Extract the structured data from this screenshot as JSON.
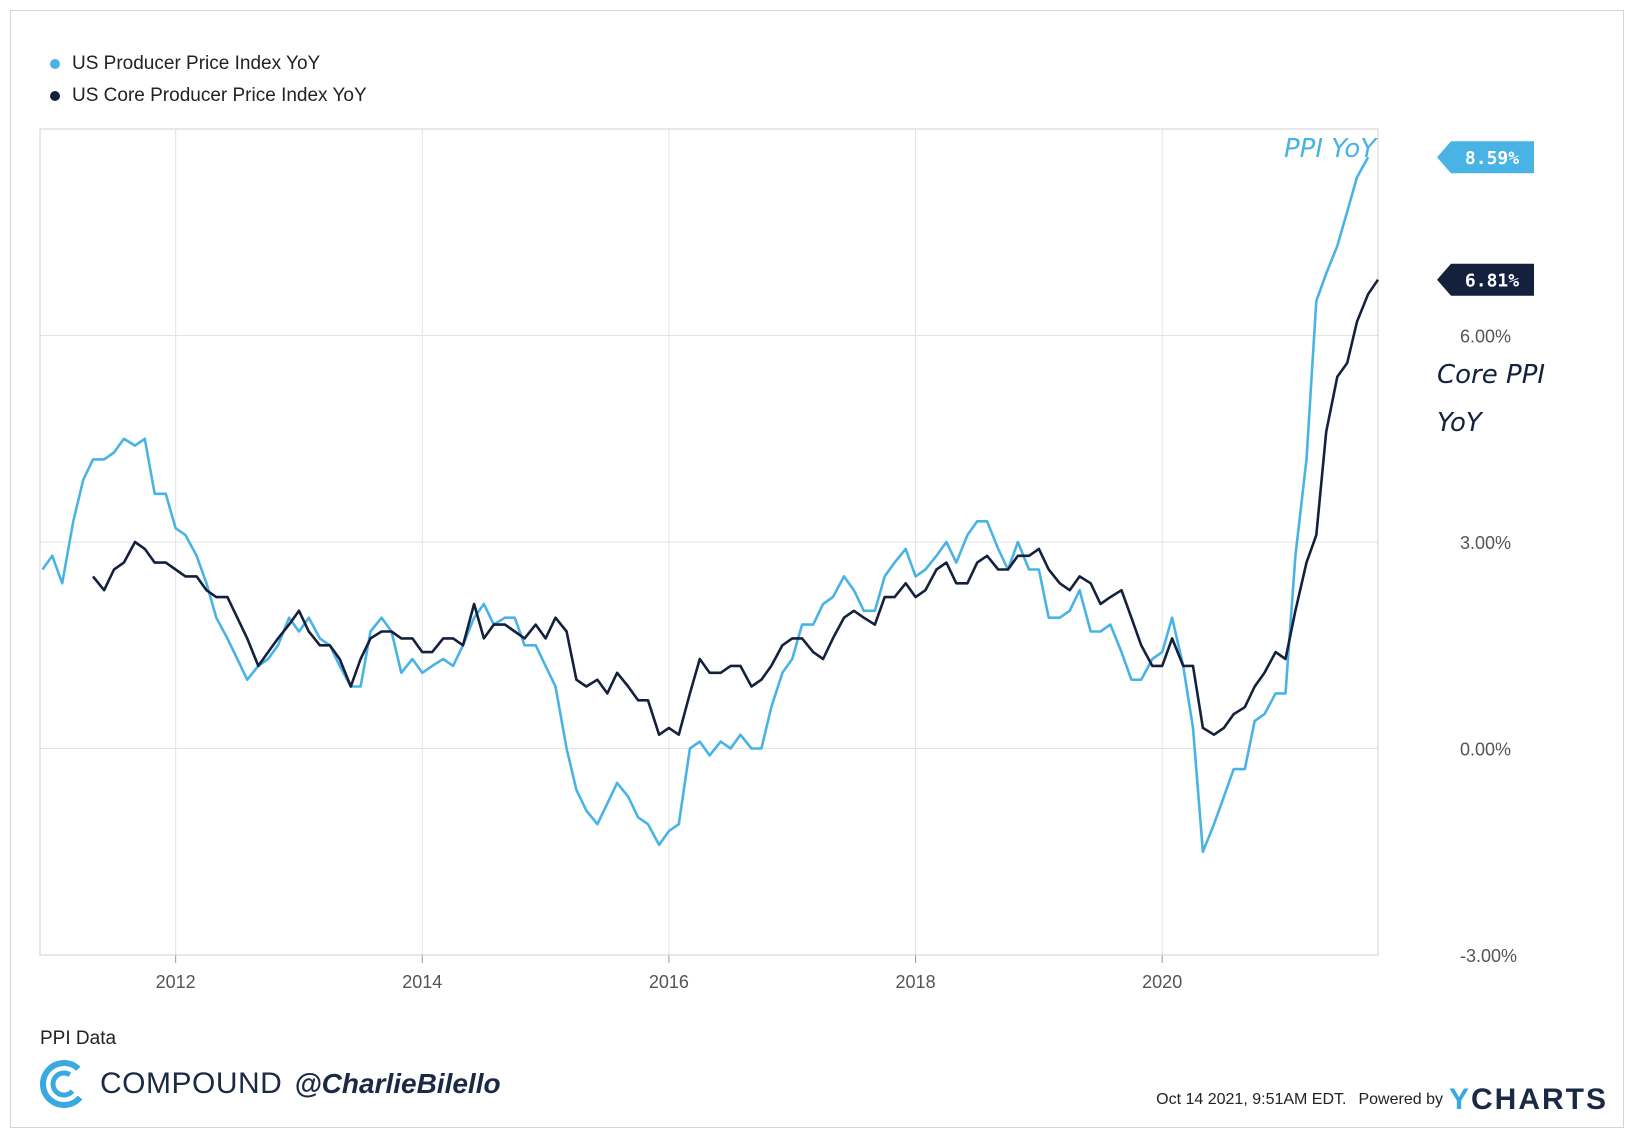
{
  "legend": [
    {
      "label": "US Producer Price Index YoY",
      "color": "#4ab3e6"
    },
    {
      "label": "US Core Producer Price Index YoY",
      "color": "#14213d"
    }
  ],
  "annotations": {
    "ppi": "PPI YoY",
    "core_line1": "Core PPI",
    "core_line2": "YoY"
  },
  "footer": {
    "source": "PPI Data",
    "brand": "COMPOUND",
    "handle": "@CharlieBilello",
    "timestamp": "Oct 14 2021, 9:51AM EDT.",
    "powered_by": "Powered by",
    "ycharts_y": "Y",
    "ycharts_rest": "CHARTS"
  },
  "chart_data": {
    "type": "line",
    "xlabel": "",
    "ylabel": "",
    "x_range": [
      2010.9,
      2021.75
    ],
    "ylim": [
      -3,
      9
    ],
    "x_ticks": [
      {
        "value": 2012,
        "label": "2012"
      },
      {
        "value": 2014,
        "label": "2014"
      },
      {
        "value": 2016,
        "label": "2016"
      },
      {
        "value": 2018,
        "label": "2018"
      },
      {
        "value": 2020,
        "label": "2020"
      }
    ],
    "y_ticks": [
      {
        "value": -3,
        "label": "-3.00%"
      },
      {
        "value": 0,
        "label": "0.00%"
      },
      {
        "value": 3,
        "label": "3.00%"
      },
      {
        "value": 6,
        "label": "6.00%"
      }
    ],
    "grid": true,
    "series": [
      {
        "name": "US Producer Price Index YoY",
        "color": "#4ab3e6",
        "last_label": "8.59%",
        "points": [
          [
            2010.92,
            2.6
          ],
          [
            2011.0,
            2.8
          ],
          [
            2011.08,
            2.4
          ],
          [
            2011.17,
            3.3
          ],
          [
            2011.25,
            3.9
          ],
          [
            2011.33,
            4.2
          ],
          [
            2011.42,
            4.2
          ],
          [
            2011.5,
            4.3
          ],
          [
            2011.58,
            4.5
          ],
          [
            2011.67,
            4.4
          ],
          [
            2011.75,
            4.5
          ],
          [
            2011.83,
            3.7
          ],
          [
            2011.92,
            3.7
          ],
          [
            2012.0,
            3.2
          ],
          [
            2012.08,
            3.1
          ],
          [
            2012.17,
            2.8
          ],
          [
            2012.25,
            2.4
          ],
          [
            2012.33,
            1.9
          ],
          [
            2012.42,
            1.6
          ],
          [
            2012.5,
            1.3
          ],
          [
            2012.58,
            1.0
          ],
          [
            2012.67,
            1.2
          ],
          [
            2012.75,
            1.3
          ],
          [
            2012.83,
            1.5
          ],
          [
            2012.92,
            1.9
          ],
          [
            2013.0,
            1.7
          ],
          [
            2013.08,
            1.9
          ],
          [
            2013.17,
            1.6
          ],
          [
            2013.25,
            1.5
          ],
          [
            2013.33,
            1.2
          ],
          [
            2013.42,
            0.9
          ],
          [
            2013.5,
            0.9
          ],
          [
            2013.58,
            1.7
          ],
          [
            2013.67,
            1.9
          ],
          [
            2013.75,
            1.7
          ],
          [
            2013.83,
            1.1
          ],
          [
            2013.92,
            1.3
          ],
          [
            2014.0,
            1.1
          ],
          [
            2014.08,
            1.2
          ],
          [
            2014.17,
            1.3
          ],
          [
            2014.25,
            1.2
          ],
          [
            2014.33,
            1.5
          ],
          [
            2014.42,
            1.9
          ],
          [
            2014.5,
            2.1
          ],
          [
            2014.58,
            1.8
          ],
          [
            2014.67,
            1.9
          ],
          [
            2014.75,
            1.9
          ],
          [
            2014.83,
            1.5
          ],
          [
            2014.92,
            1.5
          ],
          [
            2015.0,
            1.2
          ],
          [
            2015.08,
            0.9
          ],
          [
            2015.17,
            0.0
          ],
          [
            2015.25,
            -0.6
          ],
          [
            2015.33,
            -0.9
          ],
          [
            2015.42,
            -1.1
          ],
          [
            2015.5,
            -0.8
          ],
          [
            2015.58,
            -0.5
          ],
          [
            2015.67,
            -0.7
          ],
          [
            2015.75,
            -1.0
          ],
          [
            2015.83,
            -1.1
          ],
          [
            2015.92,
            -1.4
          ],
          [
            2016.0,
            -1.2
          ],
          [
            2016.08,
            -1.1
          ],
          [
            2016.17,
            0.0
          ],
          [
            2016.25,
            0.1
          ],
          [
            2016.33,
            -0.1
          ],
          [
            2016.42,
            0.1
          ],
          [
            2016.5,
            0.0
          ],
          [
            2016.58,
            0.2
          ],
          [
            2016.67,
            0.0
          ],
          [
            2016.75,
            0.0
          ],
          [
            2016.83,
            0.6
          ],
          [
            2016.92,
            1.1
          ],
          [
            2017.0,
            1.3
          ],
          [
            2017.08,
            1.8
          ],
          [
            2017.17,
            1.8
          ],
          [
            2017.25,
            2.1
          ],
          [
            2017.33,
            2.2
          ],
          [
            2017.42,
            2.5
          ],
          [
            2017.5,
            2.3
          ],
          [
            2017.58,
            2.0
          ],
          [
            2017.67,
            2.0
          ],
          [
            2017.75,
            2.5
          ],
          [
            2017.83,
            2.7
          ],
          [
            2017.92,
            2.9
          ],
          [
            2018.0,
            2.5
          ],
          [
            2018.08,
            2.6
          ],
          [
            2018.17,
            2.8
          ],
          [
            2018.25,
            3.0
          ],
          [
            2018.33,
            2.7
          ],
          [
            2018.42,
            3.1
          ],
          [
            2018.5,
            3.3
          ],
          [
            2018.58,
            3.3
          ],
          [
            2018.67,
            2.9
          ],
          [
            2018.75,
            2.6
          ],
          [
            2018.83,
            3.0
          ],
          [
            2018.92,
            2.6
          ],
          [
            2019.0,
            2.6
          ],
          [
            2019.08,
            1.9
          ],
          [
            2019.17,
            1.9
          ],
          [
            2019.25,
            2.0
          ],
          [
            2019.33,
            2.3
          ],
          [
            2019.42,
            1.7
          ],
          [
            2019.5,
            1.7
          ],
          [
            2019.58,
            1.8
          ],
          [
            2019.67,
            1.4
          ],
          [
            2019.75,
            1.0
          ],
          [
            2019.83,
            1.0
          ],
          [
            2019.92,
            1.3
          ],
          [
            2020.0,
            1.4
          ],
          [
            2020.08,
            1.9
          ],
          [
            2020.17,
            1.2
          ],
          [
            2020.25,
            0.3
          ],
          [
            2020.33,
            -1.5
          ],
          [
            2020.42,
            -1.1
          ],
          [
            2020.5,
            -0.7
          ],
          [
            2020.58,
            -0.3
          ],
          [
            2020.67,
            -0.3
          ],
          [
            2020.75,
            0.4
          ],
          [
            2020.83,
            0.5
          ],
          [
            2020.92,
            0.8
          ],
          [
            2021.0,
            0.8
          ],
          [
            2021.08,
            2.8
          ],
          [
            2021.17,
            4.2
          ],
          [
            2021.25,
            6.5
          ],
          [
            2021.33,
            6.9
          ],
          [
            2021.42,
            7.3
          ],
          [
            2021.5,
            7.8
          ],
          [
            2021.58,
            8.3
          ],
          [
            2021.67,
            8.59
          ]
        ]
      },
      {
        "name": "US Core Producer Price Index YoY",
        "color": "#14213d",
        "last_label": "6.81%",
        "points": [
          [
            2011.33,
            2.5
          ],
          [
            2011.42,
            2.3
          ],
          [
            2011.5,
            2.6
          ],
          [
            2011.58,
            2.7
          ],
          [
            2011.67,
            3.0
          ],
          [
            2011.75,
            2.9
          ],
          [
            2011.83,
            2.7
          ],
          [
            2011.92,
            2.7
          ],
          [
            2012.0,
            2.6
          ],
          [
            2012.08,
            2.5
          ],
          [
            2012.17,
            2.5
          ],
          [
            2012.25,
            2.3
          ],
          [
            2012.33,
            2.2
          ],
          [
            2012.42,
            2.2
          ],
          [
            2012.5,
            1.9
          ],
          [
            2012.58,
            1.6
          ],
          [
            2012.67,
            1.2
          ],
          [
            2012.75,
            1.4
          ],
          [
            2012.83,
            1.6
          ],
          [
            2012.92,
            1.8
          ],
          [
            2013.0,
            2.0
          ],
          [
            2013.08,
            1.7
          ],
          [
            2013.17,
            1.5
          ],
          [
            2013.25,
            1.5
          ],
          [
            2013.33,
            1.3
          ],
          [
            2013.42,
            0.9
          ],
          [
            2013.5,
            1.3
          ],
          [
            2013.58,
            1.6
          ],
          [
            2013.67,
            1.7
          ],
          [
            2013.75,
            1.7
          ],
          [
            2013.83,
            1.6
          ],
          [
            2013.92,
            1.6
          ],
          [
            2014.0,
            1.4
          ],
          [
            2014.08,
            1.4
          ],
          [
            2014.17,
            1.6
          ],
          [
            2014.25,
            1.6
          ],
          [
            2014.33,
            1.5
          ],
          [
            2014.42,
            2.1
          ],
          [
            2014.5,
            1.6
          ],
          [
            2014.58,
            1.8
          ],
          [
            2014.67,
            1.8
          ],
          [
            2014.75,
            1.7
          ],
          [
            2014.83,
            1.6
          ],
          [
            2014.92,
            1.8
          ],
          [
            2015.0,
            1.6
          ],
          [
            2015.08,
            1.9
          ],
          [
            2015.17,
            1.7
          ],
          [
            2015.25,
            1.0
          ],
          [
            2015.33,
            0.9
          ],
          [
            2015.42,
            1.0
          ],
          [
            2015.5,
            0.8
          ],
          [
            2015.58,
            1.1
          ],
          [
            2015.67,
            0.9
          ],
          [
            2015.75,
            0.7
          ],
          [
            2015.83,
            0.7
          ],
          [
            2015.92,
            0.2
          ],
          [
            2016.0,
            0.3
          ],
          [
            2016.08,
            0.2
          ],
          [
            2016.17,
            0.8
          ],
          [
            2016.25,
            1.3
          ],
          [
            2016.33,
            1.1
          ],
          [
            2016.42,
            1.1
          ],
          [
            2016.5,
            1.2
          ],
          [
            2016.58,
            1.2
          ],
          [
            2016.67,
            0.9
          ],
          [
            2016.75,
            1.0
          ],
          [
            2016.83,
            1.2
          ],
          [
            2016.92,
            1.5
          ],
          [
            2017.0,
            1.6
          ],
          [
            2017.08,
            1.6
          ],
          [
            2017.17,
            1.4
          ],
          [
            2017.25,
            1.3
          ],
          [
            2017.33,
            1.6
          ],
          [
            2017.42,
            1.9
          ],
          [
            2017.5,
            2.0
          ],
          [
            2017.58,
            1.9
          ],
          [
            2017.67,
            1.8
          ],
          [
            2017.75,
            2.2
          ],
          [
            2017.83,
            2.2
          ],
          [
            2017.92,
            2.4
          ],
          [
            2018.0,
            2.2
          ],
          [
            2018.08,
            2.3
          ],
          [
            2018.17,
            2.6
          ],
          [
            2018.25,
            2.7
          ],
          [
            2018.33,
            2.4
          ],
          [
            2018.42,
            2.4
          ],
          [
            2018.5,
            2.7
          ],
          [
            2018.58,
            2.8
          ],
          [
            2018.67,
            2.6
          ],
          [
            2018.75,
            2.6
          ],
          [
            2018.83,
            2.8
          ],
          [
            2018.92,
            2.8
          ],
          [
            2019.0,
            2.9
          ],
          [
            2019.08,
            2.6
          ],
          [
            2019.17,
            2.4
          ],
          [
            2019.25,
            2.3
          ],
          [
            2019.33,
            2.5
          ],
          [
            2019.42,
            2.4
          ],
          [
            2019.5,
            2.1
          ],
          [
            2019.58,
            2.2
          ],
          [
            2019.67,
            2.3
          ],
          [
            2019.75,
            1.9
          ],
          [
            2019.83,
            1.5
          ],
          [
            2019.92,
            1.2
          ],
          [
            2020.0,
            1.2
          ],
          [
            2020.08,
            1.6
          ],
          [
            2020.17,
            1.2
          ],
          [
            2020.25,
            1.2
          ],
          [
            2020.33,
            0.3
          ],
          [
            2020.42,
            0.2
          ],
          [
            2020.5,
            0.3
          ],
          [
            2020.58,
            0.5
          ],
          [
            2020.67,
            0.6
          ],
          [
            2020.75,
            0.9
          ],
          [
            2020.83,
            1.1
          ],
          [
            2020.92,
            1.4
          ],
          [
            2021.0,
            1.3
          ],
          [
            2021.08,
            2.0
          ],
          [
            2021.17,
            2.7
          ],
          [
            2021.25,
            3.1
          ],
          [
            2021.33,
            4.6
          ],
          [
            2021.42,
            5.4
          ],
          [
            2021.5,
            5.6
          ],
          [
            2021.58,
            6.2
          ],
          [
            2021.67,
            6.6
          ],
          [
            2021.75,
            6.81
          ]
        ]
      }
    ]
  }
}
